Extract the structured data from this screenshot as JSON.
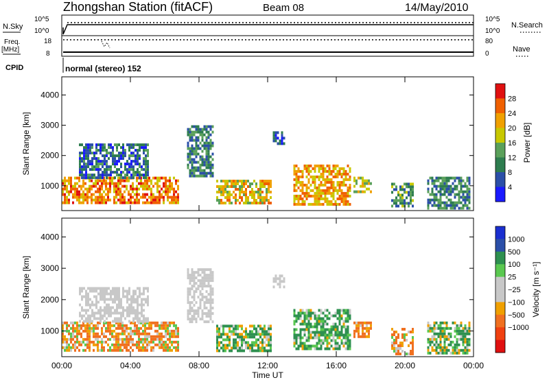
{
  "header": {
    "station": "Zhongshan Station (fitACF)",
    "beam": "Beam 08",
    "date": "14/May/2010"
  },
  "param_panel": {
    "n_sky_label": "N.Sky",
    "n_sky_ticks": [
      "10^5",
      "10^0"
    ],
    "n_search_label": "N.Search",
    "n_search_ticks": [
      "10^5",
      "10^0"
    ],
    "freq_label": "Freq.",
    "freq_unit": "[MHz]",
    "freq_ticks": [
      "18",
      "8"
    ],
    "nave_label": "Nave",
    "nave_ticks": [
      "80",
      "0"
    ],
    "cpid_label": "CPID",
    "cpid_text": "normal (stereo) 152"
  },
  "colors": {
    "power_scale": [
      "#1a1aff",
      "#2b4fa8",
      "#2e7d4f",
      "#5aa05a",
      "#c8c800",
      "#f0a000",
      "#f06000",
      "#e01010"
    ],
    "velocity_scale": [
      "#e01010",
      "#f04010",
      "#f07020",
      "#f0a000",
      "#c8c8c8",
      "#c8c8c8",
      "#5ac850",
      "#2e9050",
      "#2b4fa8",
      "#1a2fd0"
    ]
  },
  "chart_data": [
    {
      "type": "heatmap",
      "panel": "power",
      "xlabel": "",
      "ylabel": "Slant Range [km]",
      "xlim": [
        0,
        24
      ],
      "ylim": [
        180,
        4600
      ],
      "x_ticks": [
        "00:00",
        "04:00",
        "08:00",
        "12:00",
        "16:00",
        "20:00",
        "00:00"
      ],
      "y_ticks": [
        1000,
        2000,
        3000,
        4000
      ],
      "colorbar": {
        "label": "Power [dB]",
        "ticks": [
          4,
          8,
          12,
          16,
          20,
          24,
          28
        ],
        "range": [
          0,
          32
        ]
      },
      "regions": [
        {
          "t": [
            0.0,
            6.8
          ],
          "r": [
            400,
            1300
          ],
          "value": 24
        },
        {
          "t": [
            1.0,
            5.0
          ],
          "r": [
            1300,
            2400
          ],
          "value": 8
        },
        {
          "t": [
            7.3,
            8.8
          ],
          "r": [
            1300,
            3000
          ],
          "value": 10
        },
        {
          "t": [
            9.0,
            12.2
          ],
          "r": [
            400,
            1200
          ],
          "value": 20
        },
        {
          "t": [
            12.3,
            13.0
          ],
          "r": [
            2400,
            2800
          ],
          "value": 6
        },
        {
          "t": [
            13.5,
            16.8
          ],
          "r": [
            400,
            1700
          ],
          "value": 22
        },
        {
          "t": [
            17.0,
            18.0
          ],
          "r": [
            800,
            1300
          ],
          "value": 16
        },
        {
          "t": [
            19.2,
            20.5
          ],
          "r": [
            300,
            1100
          ],
          "value": 12
        },
        {
          "t": [
            21.3,
            23.8
          ],
          "r": [
            300,
            1300
          ],
          "value": 10
        }
      ]
    },
    {
      "type": "heatmap",
      "panel": "velocity",
      "xlabel": "Time UT",
      "ylabel": "Slant Range [km]",
      "xlim": [
        0,
        24
      ],
      "ylim": [
        180,
        4600
      ],
      "x_ticks": [
        "00:00",
        "04:00",
        "08:00",
        "12:00",
        "16:00",
        "20:00",
        "00:00"
      ],
      "y_ticks": [
        1000,
        2000,
        3000,
        4000
      ],
      "colorbar": {
        "label": "Velocity [m s⁻¹]",
        "ticks": [
          "1000",
          "500",
          "100",
          "25",
          "−25",
          "−100",
          "−500",
          "−1000"
        ]
      },
      "regions": [
        {
          "t": [
            0.0,
            6.8
          ],
          "r": [
            400,
            1300
          ],
          "value": -100
        },
        {
          "t": [
            1.0,
            5.0
          ],
          "r": [
            1300,
            2400
          ],
          "value": 0
        },
        {
          "t": [
            7.3,
            8.8
          ],
          "r": [
            1300,
            3000
          ],
          "value": 0
        },
        {
          "t": [
            9.0,
            12.2
          ],
          "r": [
            400,
            1200
          ],
          "value": 100
        },
        {
          "t": [
            12.3,
            13.0
          ],
          "r": [
            2400,
            2800
          ],
          "value": 0
        },
        {
          "t": [
            13.5,
            16.8
          ],
          "r": [
            400,
            1700
          ],
          "value": 150
        },
        {
          "t": [
            17.0,
            18.0
          ],
          "r": [
            800,
            1300
          ],
          "value": -200
        },
        {
          "t": [
            19.2,
            20.5
          ],
          "r": [
            300,
            1100
          ],
          "value": -150
        },
        {
          "t": [
            21.3,
            23.8
          ],
          "r": [
            300,
            1300
          ],
          "value": 100
        }
      ]
    }
  ]
}
